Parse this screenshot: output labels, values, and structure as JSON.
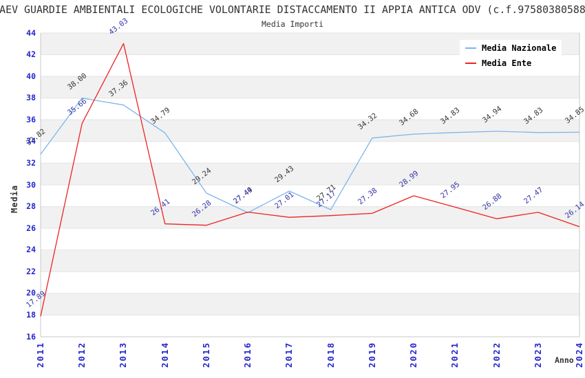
{
  "header": {
    "title": "AEV GUARDIE AMBIENTALI ECOLOGICHE VOLONTARIE DISTACCAMENTO II APPIA ANTICA ODV (c.f.97580380588",
    "subtitle": "Media Importi"
  },
  "axes": {
    "y_title": "Media",
    "x_title": "Anno"
  },
  "legend": {
    "items": [
      {
        "label": "Media Nazionale",
        "color": "#7cb5ec"
      },
      {
        "label": "Media Ente",
        "color": "#ee2222"
      }
    ]
  },
  "colors": {
    "band": "#f1f1f1",
    "gridline": "#e3e3e3",
    "axis_line": "#c8c8c8",
    "tick_label": "#2525cd",
    "title_text": "#333333"
  },
  "chart_data": {
    "type": "line",
    "title": "Media Importi",
    "xlabel": "Anno",
    "ylabel": "Media",
    "x": [
      2011,
      2012,
      2013,
      2014,
      2015,
      2016,
      2017,
      2018,
      2019,
      2020,
      2021,
      2022,
      2023,
      2024
    ],
    "series": [
      {
        "name": "Media Nazionale",
        "color": "#7cb5ec",
        "label_color": "#333333",
        "values": [
          32.82,
          38.0,
          37.36,
          34.79,
          29.24,
          27.44,
          29.43,
          27.71,
          34.32,
          34.68,
          34.83,
          34.94,
          34.83,
          34.85
        ]
      },
      {
        "name": "Media Ente",
        "color": "#ee2222",
        "label_color": "#3333aa",
        "values": [
          17.89,
          35.66,
          43.03,
          26.41,
          26.28,
          27.49,
          27.01,
          27.17,
          27.38,
          28.99,
          27.95,
          26.88,
          27.47,
          26.14
        ]
      }
    ],
    "ylim": [
      16,
      44
    ],
    "y_ticks": [
      16,
      18,
      20,
      22,
      24,
      26,
      28,
      30,
      32,
      34,
      36,
      38,
      40,
      42,
      44
    ],
    "gray_band_lower_edges": [
      18,
      22,
      26,
      30,
      34,
      38,
      42
    ],
    "grid": true,
    "legend_position": "top-right",
    "data_labels": true
  }
}
